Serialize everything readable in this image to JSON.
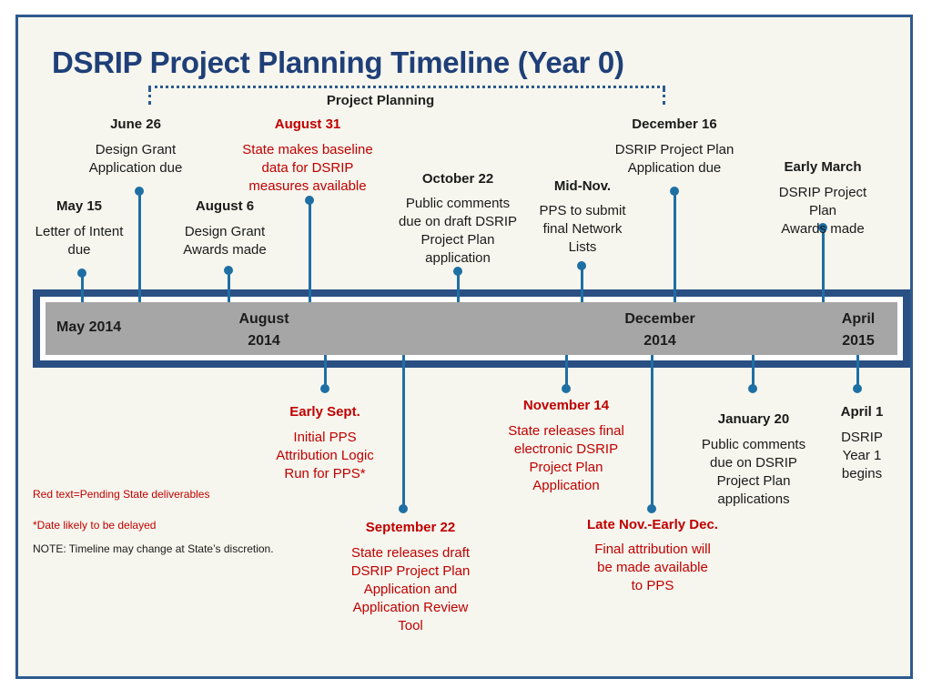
{
  "title": "DSRIP Project Planning Timeline (Year 0)",
  "bracket_label": "Project Planning",
  "bar": {
    "start": "May 2014",
    "august": "August\n2014",
    "december": "December\n2014",
    "april": "April\n2015"
  },
  "events_above": [
    {
      "date": "June 26",
      "desc": "Design Grant\nApplication due"
    },
    {
      "date": "August 31",
      "desc": "State makes baseline\ndata for DSRIP\nmeasures available",
      "pending": true
    },
    {
      "date": "December 16",
      "desc": "DSRIP Project Plan\nApplication due"
    },
    {
      "date": "Early March",
      "desc": "DSRIP Project Plan\nAwards made"
    },
    {
      "date": "October 22",
      "desc": "Public comments\ndue on draft DSRIP\nProject Plan\napplication"
    },
    {
      "date": "Mid-Nov.",
      "desc": "PPS to submit\nfinal Network\nLists"
    },
    {
      "date": "May 15",
      "desc": "Letter of Intent\ndue"
    },
    {
      "date": "August 6",
      "desc": "Design Grant\nAwards made"
    }
  ],
  "events_below": [
    {
      "date": "Early Sept.",
      "desc": "Initial PPS\nAttribution Logic\nRun for PPS*",
      "pending": true
    },
    {
      "date": "November 14",
      "desc": "State releases final\nelectronic DSRIP\nProject Plan\nApplication",
      "pending": true
    },
    {
      "date": "January 20",
      "desc": "Public comments\ndue on DSRIP\nProject Plan\napplications"
    },
    {
      "date": "April 1",
      "desc": "DSRIP Year 1\nbegins"
    },
    {
      "date": "September 22",
      "desc": "State releases draft\nDSRIP Project Plan\nApplication and\nApplication Review\nTool",
      "pending": true
    },
    {
      "date": "Late Nov.-Early Dec.",
      "desc": "Final attribution will\nbe made available\nto PPS",
      "pending": true
    }
  ],
  "notes": {
    "legend": "Red text=Pending State deliverables",
    "delay": "*Date likely to be delayed",
    "disclaimer": "NOTE: Timeline may change at State’s discretion."
  },
  "colors": {
    "title": "#1f3f78",
    "frame": "#2a4f83",
    "bar": "#a6a6a6",
    "stem": "#1e6fa4",
    "pending": "#c00000"
  }
}
